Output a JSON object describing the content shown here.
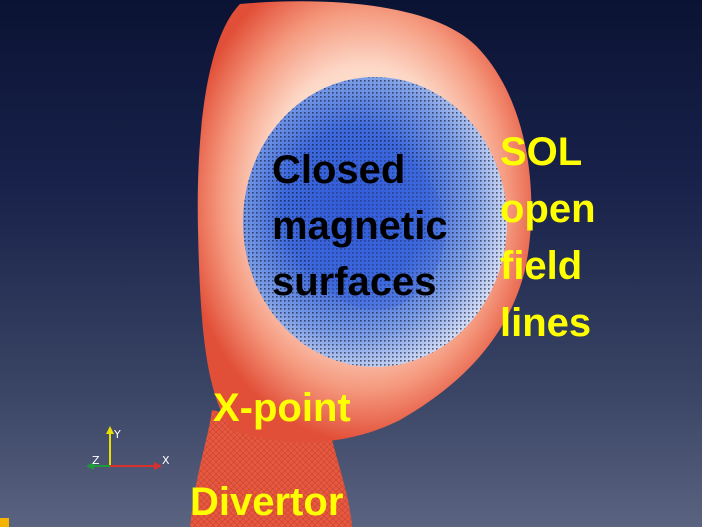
{
  "colors": {
    "highlight": "#ffff00",
    "text_dark": "#000000",
    "plasma_edge": "#e8523a",
    "plasma_mid": "#ffe9dc",
    "core": "#3b62d8"
  },
  "labels": {
    "closed": [
      "Closed",
      "magnetic",
      "surfaces"
    ],
    "sol": [
      "SOL",
      "open",
      "field",
      "lines"
    ],
    "xpoint": "X-point",
    "divertor": "Divertor"
  },
  "axes": {
    "y": "Y",
    "z": "Z",
    "x": "X"
  }
}
